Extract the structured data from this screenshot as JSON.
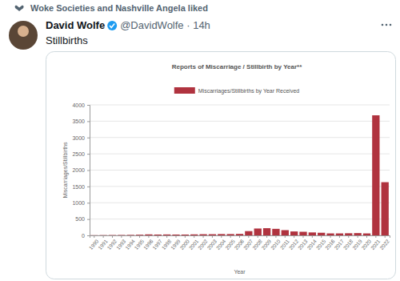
{
  "tweet": {
    "liked_by": "Woke Societies and Nashville Angela liked",
    "name": "David Wolfe",
    "handle_time": "@DavidWolfe · 14h",
    "text": "Stillbirths"
  },
  "chart_data": {
    "type": "bar",
    "title": "Reports of Miscarriage / Stillbirth by Year**",
    "x_label": "Year",
    "y_label": "Miscarriages/Stillbirths",
    "categories": [
      "1990",
      "1991",
      "1992",
      "1993",
      "1994",
      "1995",
      "1996",
      "1997",
      "1998",
      "1999",
      "2000",
      "2001",
      "2002",
      "2003",
      "2004",
      "2005",
      "2006",
      "2007",
      "2008",
      "2009",
      "2010",
      "2011",
      "2012",
      "2013",
      "2014",
      "2015",
      "2016",
      "2017",
      "2018",
      "2019",
      "2020",
      "2021",
      "2022"
    ],
    "series": [
      {
        "name": "Miscarriages/Stillbirths by Year Received",
        "color": "#b0333f",
        "values": [
          5,
          8,
          10,
          12,
          15,
          20,
          30,
          25,
          28,
          25,
          25,
          30,
          35,
          35,
          40,
          40,
          45,
          130,
          210,
          220,
          200,
          160,
          120,
          110,
          90,
          80,
          60,
          60,
          65,
          70,
          60,
          3680,
          1630
        ]
      }
    ],
    "ylim": [
      0,
      4000
    ],
    "yticks": [
      0,
      500,
      1000,
      1500,
      2000,
      2500,
      3000,
      3500,
      4000
    ],
    "grid": true,
    "legend": "top"
  }
}
